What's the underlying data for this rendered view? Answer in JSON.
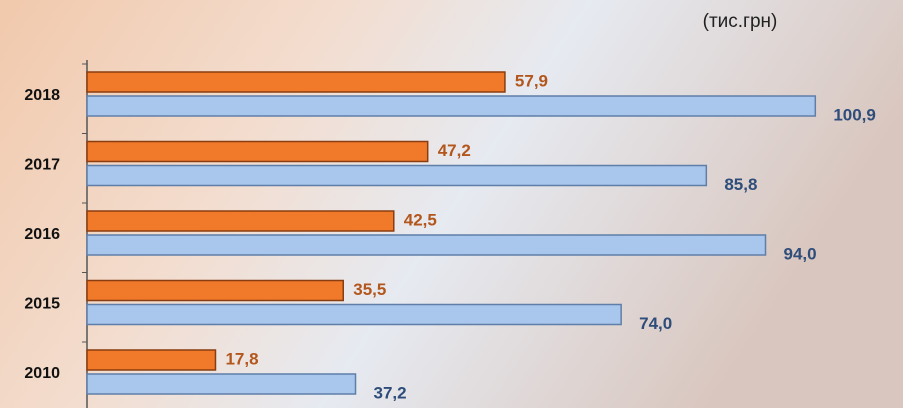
{
  "chart_data": {
    "type": "hbar",
    "subtitle": "(тис.грн)",
    "categories": [
      "2018",
      "2017",
      "2016",
      "2015",
      "2010"
    ],
    "series": [
      {
        "color": "#f07a2a",
        "label_color": "#b3561c",
        "values": [
          57.9,
          47.2,
          42.5,
          35.5,
          17.8
        ],
        "value_labels": [
          "57,9",
          "47,2",
          "42,5",
          "35,5",
          "17,8"
        ]
      },
      {
        "color": "#a9c6ec",
        "label_color": "#2e4d7a",
        "values": [
          100.9,
          85.8,
          94.0,
          74.0,
          37.2
        ],
        "value_labels": [
          "100,9",
          "85,8",
          "94,0",
          "74,0",
          "37,2"
        ]
      }
    ],
    "xlim": [
      0,
      110
    ]
  }
}
